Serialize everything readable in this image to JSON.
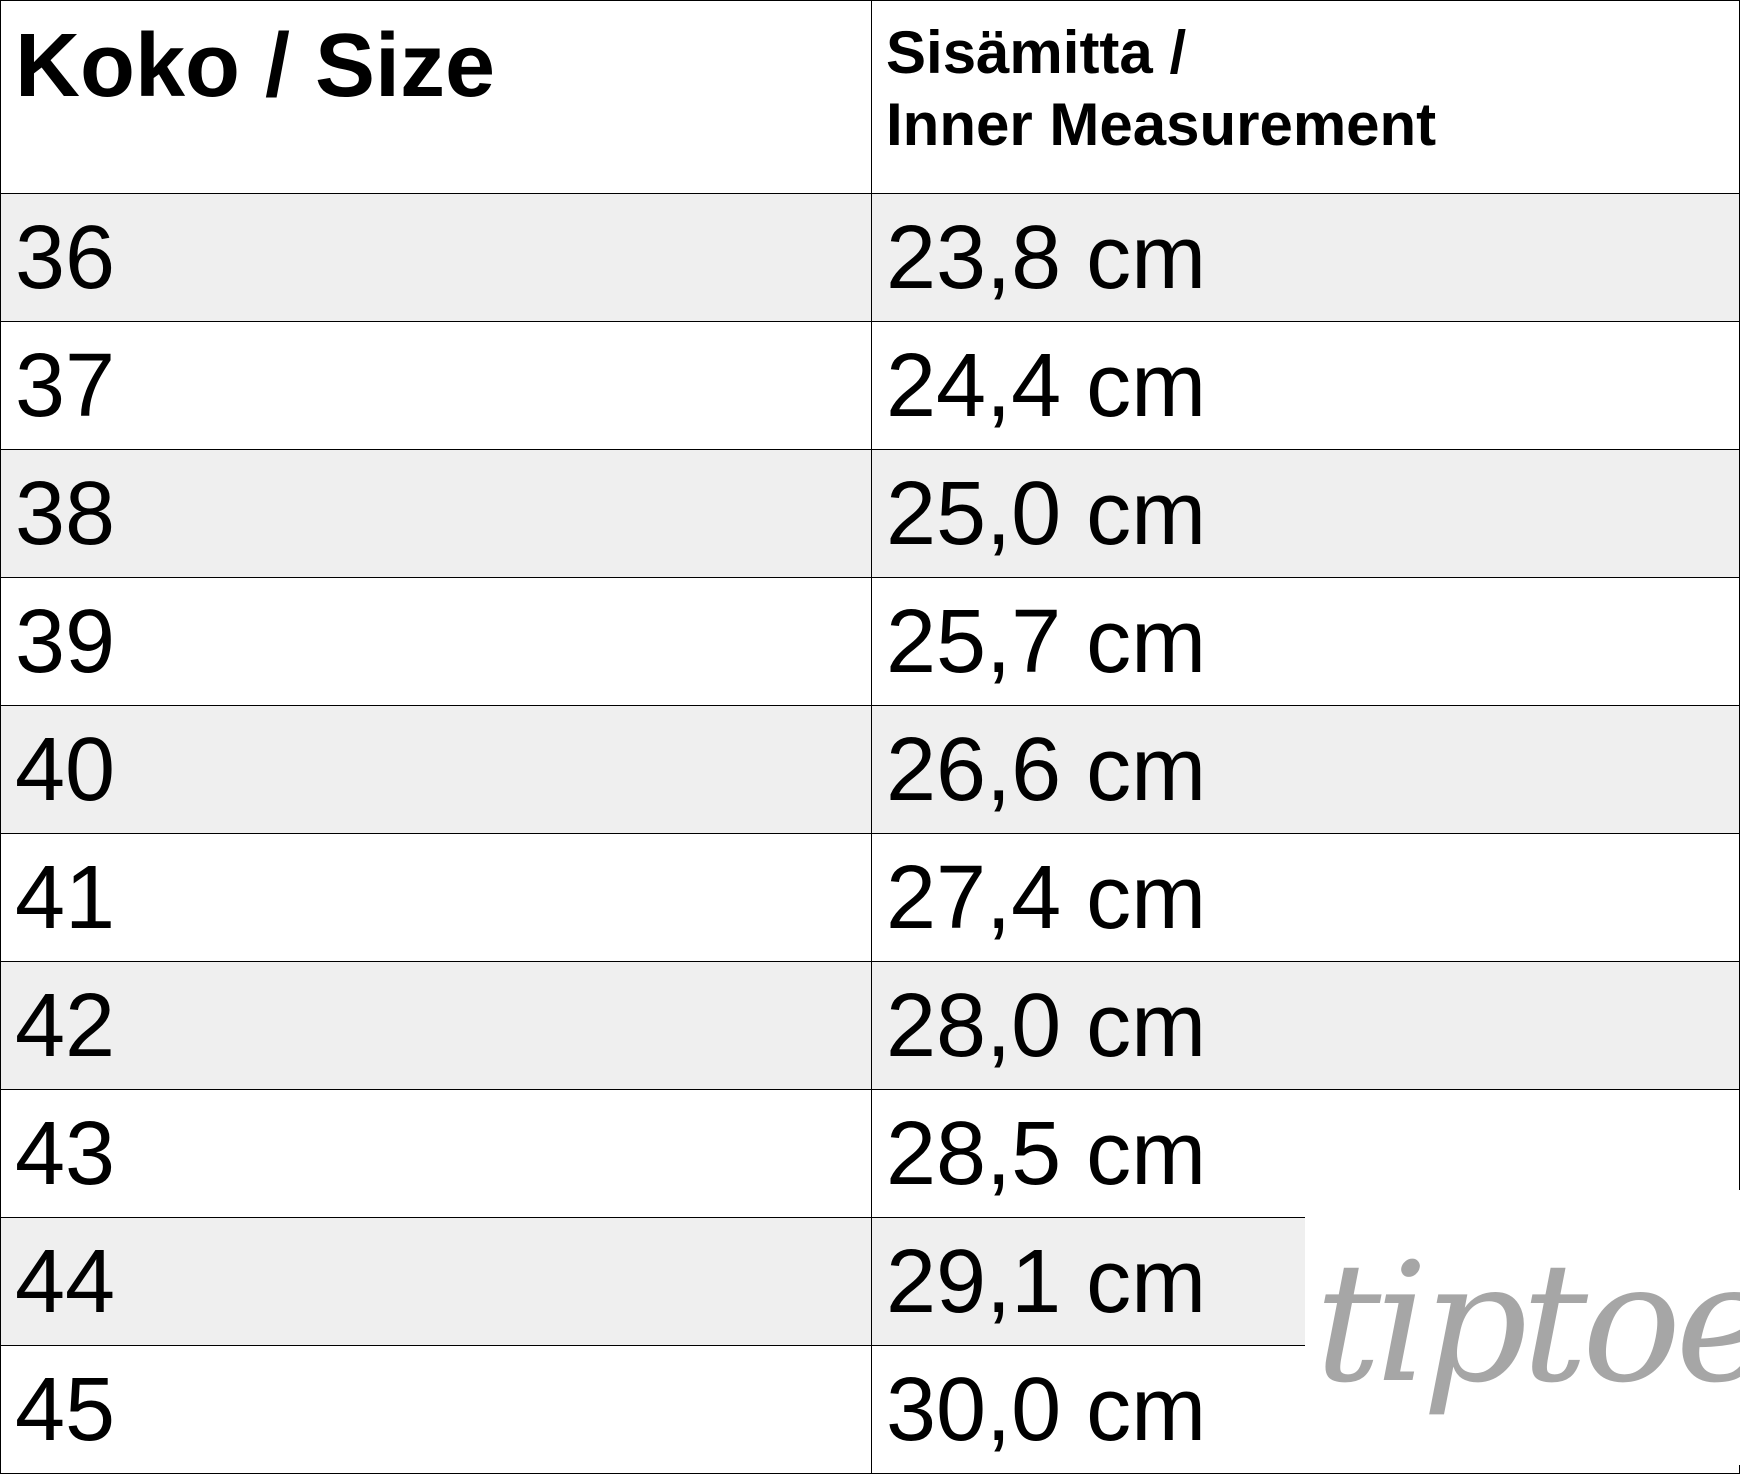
{
  "header": {
    "size": "Koko / Size",
    "measure_line1": "Sisämitta /",
    "measure_line2": "Inner Measurement"
  },
  "rows": [
    {
      "size": "36",
      "measure": "23,8 cm"
    },
    {
      "size": "37",
      "measure": "24,4 cm"
    },
    {
      "size": "38",
      "measure": "25,0 cm"
    },
    {
      "size": "39",
      "measure": "25,7 cm"
    },
    {
      "size": "40",
      "measure": "26,6 cm"
    },
    {
      "size": "41",
      "measure": "27,4 cm"
    },
    {
      "size": "42",
      "measure": "28,0 cm"
    },
    {
      "size": "43",
      "measure": "28,5 cm"
    },
    {
      "size": "44",
      "measure": "29,1 cm"
    },
    {
      "size": "45",
      "measure": "30,0 cm"
    }
  ],
  "logo": {
    "text": "tiptoe",
    "color": "#a6a6a6"
  },
  "colors": {
    "alt_row": "#efefef",
    "border": "#000000"
  }
}
